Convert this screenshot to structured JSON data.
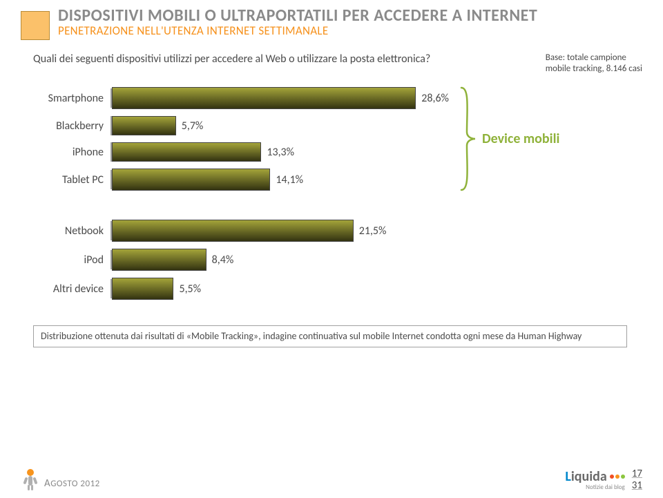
{
  "header": {
    "title": "DISPOSITIVI MOBILI O ULTRAPORTATILI PER ACCEDERE A INTERNET",
    "subtitle": "PENETRAZIONE NELL'UTENZA INTERNET SETTIMANALE",
    "bullet_color": "#fbc16a",
    "title_color": "#8a8a8a",
    "subtitle_color": "#f6921e"
  },
  "question": "Quali dei seguenti dispositivi utilizzi per accedere al Web o utilizzare la posta elettronica?",
  "base_line1": "Base: totale campione",
  "base_line2": "mobile tracking, 8.146 casi",
  "chart": {
    "max_value": 30,
    "bar_fill_top": "#a4a43a",
    "bar_fill_bottom": "#333311",
    "bar_border": "#444444",
    "axis_color": "#a0a0a0",
    "label_fontsize": 16,
    "value_fontsize": 16,
    "device_label": "Device mobili",
    "device_label_color": "#8fb23a",
    "group1": [
      {
        "label": "Smartphone",
        "value": 28.6,
        "display": "28,6%",
        "main": true
      },
      {
        "label": "Blackberry",
        "value": 5.7,
        "display": "5,7%",
        "main": false
      },
      {
        "label": "iPhone",
        "value": 13.3,
        "display": "13,3%",
        "main": false
      },
      {
        "label": "Tablet PC",
        "value": 14.1,
        "display": "14,1%",
        "main": true
      }
    ],
    "group2": [
      {
        "label": "Netbook",
        "value": 21.5,
        "display": "21,5%",
        "main": true
      },
      {
        "label": "iPod",
        "value": 8.4,
        "display": "8,4%",
        "main": true
      },
      {
        "label": "Altri device",
        "value": 5.5,
        "display": "5,5%",
        "main": true
      }
    ]
  },
  "caption": "Distribuzione ottenuta dai risultati di «Mobile Tracking», indagine continuativa sul mobile Internet condotta ogni mese da Human Highway",
  "footer": {
    "date_part1": "A",
    "date_part2": "GOSTO",
    "date_part3": " 2012",
    "logo_main": "L",
    "logo_rest": "iquida",
    "logo_sub": "Notizie dai blog",
    "dot_colors": [
      "#f04e23",
      "#f7941d",
      "#8cc63f"
    ],
    "page_current": "17",
    "page_total": "31"
  }
}
